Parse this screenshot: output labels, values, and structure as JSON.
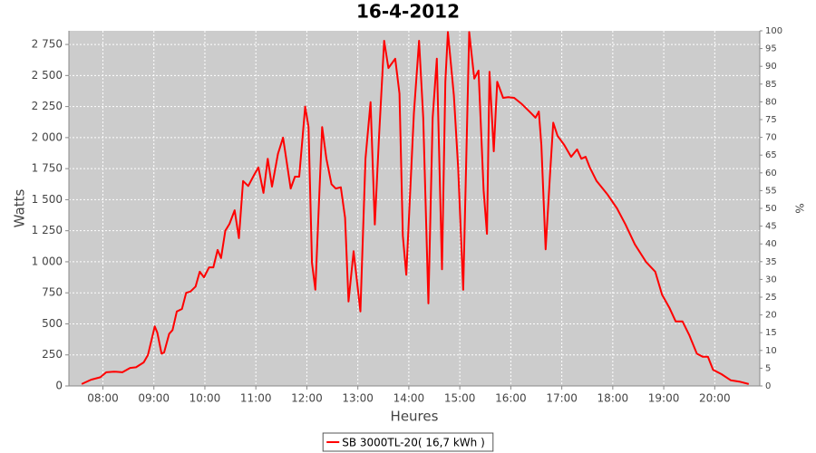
{
  "chart_data": {
    "type": "line",
    "title": "16-4-2012",
    "x_label": "Heures",
    "y_label": "Watts",
    "y2_label": "%",
    "x": [
      "07:35",
      "07:46",
      "07:57",
      "08:04",
      "08:13",
      "08:23",
      "08:32",
      "08:39",
      "08:48",
      "08:53",
      "09:01",
      "09:04",
      "09:09",
      "09:12",
      "09:18",
      "09:22",
      "09:27",
      "09:33",
      "09:38",
      "09:43",
      "09:49",
      "09:54",
      "09:59",
      "10:05",
      "10:10",
      "10:15",
      "10:19",
      "10:24",
      "10:29",
      "10:35",
      "10:40",
      "10:45",
      "10:51",
      "10:58",
      "11:03",
      "11:09",
      "11:14",
      "11:19",
      "11:26",
      "11:32",
      "11:41",
      "11:46",
      "11:51",
      "11:58",
      "12:02",
      "12:06",
      "12:10",
      "12:18",
      "12:23",
      "12:29",
      "12:34",
      "12:40",
      "12:45",
      "12:49",
      "12:55",
      "13:03",
      "13:09",
      "13:15",
      "13:20",
      "13:25",
      "13:31",
      "13:36",
      "13:44",
      "13:49",
      "13:53",
      "13:57",
      "14:06",
      "14:12",
      "14:17",
      "14:23",
      "14:28",
      "14:33",
      "14:39",
      "14:43",
      "14:46",
      "14:53",
      "14:58",
      "15:04",
      "15:07",
      "15:11",
      "15:17",
      "15:22",
      "15:28",
      "15:32",
      "15:35",
      "15:40",
      "15:44",
      "15:51",
      "15:57",
      "16:04",
      "16:13",
      "16:24",
      "16:29",
      "16:33",
      "16:36",
      "16:41",
      "16:46",
      "16:50",
      "16:55",
      "17:03",
      "17:11",
      "17:18",
      "17:23",
      "17:28",
      "17:33",
      "17:41",
      "17:54",
      "18:05",
      "18:15",
      "18:26",
      "18:39",
      "18:50",
      "18:58",
      "19:07",
      "19:14",
      "19:22",
      "19:30",
      "19:39",
      "19:46",
      "19:52",
      "19:58",
      "20:08",
      "20:19",
      "20:29",
      "20:40"
    ],
    "series": [
      {
        "name": "SB 3000TL-20( 16,7 kWh )",
        "color": "#ff0000",
        "values": [
          15,
          50,
          70,
          110,
          115,
          110,
          145,
          150,
          190,
          250,
          480,
          430,
          260,
          270,
          420,
          450,
          600,
          620,
          750,
          760,
          800,
          920,
          875,
          955,
          955,
          1095,
          1030,
          1250,
          1305,
          1415,
          1190,
          1650,
          1610,
          1700,
          1760,
          1555,
          1830,
          1605,
          1870,
          2000,
          1590,
          1685,
          1685,
          2250,
          2085,
          990,
          775,
          2085,
          1830,
          1625,
          1590,
          1600,
          1355,
          680,
          1085,
          600,
          1830,
          2285,
          1300,
          2015,
          2780,
          2560,
          2635,
          2355,
          1210,
          895,
          2195,
          2780,
          2160,
          665,
          2160,
          2635,
          940,
          2450,
          2850,
          2340,
          1760,
          775,
          1650,
          2850,
          2475,
          2540,
          1575,
          1225,
          2530,
          1890,
          2450,
          2320,
          2325,
          2320,
          2270,
          2195,
          2160,
          2210,
          1940,
          1100,
          1685,
          2120,
          2015,
          1940,
          1845,
          1905,
          1830,
          1845,
          1760,
          1650,
          1540,
          1430,
          1300,
          1140,
          1000,
          920,
          735,
          625,
          520,
          520,
          410,
          260,
          235,
          235,
          130,
          95,
          45,
          35,
          15
        ]
      }
    ],
    "xlim": [
      "07:20",
      "20:53"
    ],
    "xticks": [
      "08:00",
      "09:00",
      "10:00",
      "11:00",
      "12:00",
      "13:00",
      "14:00",
      "15:00",
      "16:00",
      "17:00",
      "18:00",
      "19:00",
      "20:00"
    ],
    "ylim": [
      0,
      2860
    ],
    "yticks": [
      0,
      250,
      500,
      750,
      {
        "value": 1000,
        "label": "1 000"
      },
      {
        "value": 1250,
        "label": "1 250"
      },
      {
        "value": 1500,
        "label": "1 500"
      },
      {
        "value": 1750,
        "label": "1 750"
      },
      {
        "value": 2000,
        "label": "2 000"
      },
      {
        "value": 2250,
        "label": "2 250"
      },
      {
        "value": 2500,
        "label": "2 500"
      },
      {
        "value": 2750,
        "label": "2 750"
      }
    ],
    "y2lim": [
      0,
      100
    ],
    "y2ticks": [
      0,
      5,
      10,
      15,
      20,
      25,
      30,
      35,
      40,
      45,
      50,
      55,
      60,
      65,
      70,
      75,
      80,
      85,
      90,
      95,
      100
    ],
    "grid": true,
    "plot_background": "#cccccc",
    "legend": "bottom"
  }
}
